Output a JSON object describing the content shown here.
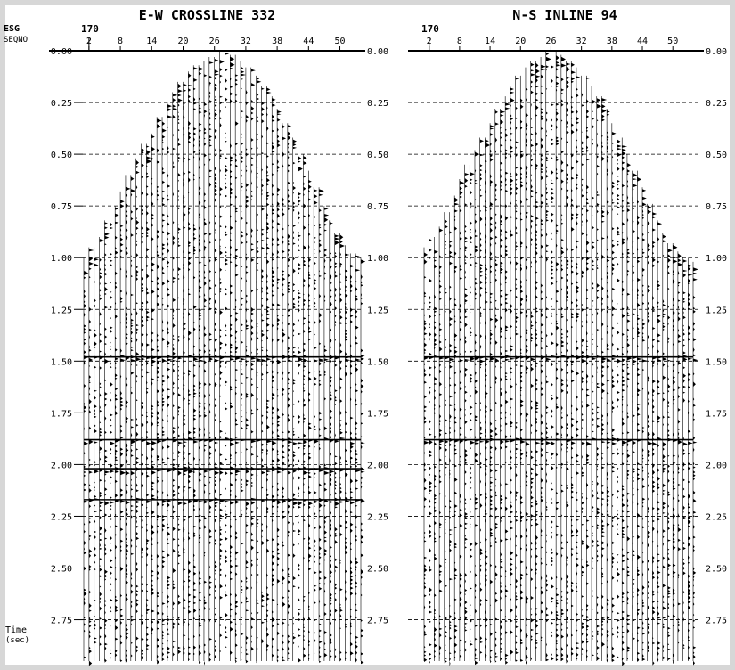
{
  "header": {
    "trace_key_1": "ESG",
    "trace_key_2": "SEQNO"
  },
  "time_axis": {
    "label": "Time",
    "unit": "(sec)"
  },
  "chart_data": [
    {
      "type": "seismic_wiggle",
      "title": "E-W CROSSLINE 332",
      "first_trace_header": "170",
      "x_ticks": [
        2,
        8,
        14,
        20,
        26,
        32,
        38,
        44,
        50
      ],
      "y_ticks": [
        "0.00",
        "0.25",
        "0.50",
        "0.75",
        "1.00",
        "1.25",
        "1.50",
        "1.75",
        "2.00",
        "2.25",
        "2.50",
        "2.75"
      ],
      "ylim": [
        0.0,
        2.95
      ],
      "trace_range": [
        1,
        54
      ],
      "gridlines": "dashed at 0.25 s",
      "mute_first_arrival_sec": [
        1.0,
        0.95,
        0.9,
        0.82,
        0.75,
        0.68,
        0.6,
        0.52,
        0.45,
        0.4,
        0.32,
        0.25,
        0.2,
        0.15,
        0.1,
        0.07,
        0.05,
        0.03,
        0.0,
        0.0,
        0.02,
        0.05,
        0.08,
        0.12,
        0.17,
        0.22,
        0.28,
        0.35,
        0.42,
        0.5,
        0.58,
        0.66,
        0.75,
        0.82,
        0.88,
        0.94,
        0.98,
        1.0
      ],
      "strong_reflectors_sec": [
        1.48,
        1.88,
        2.02,
        2.17
      ]
    },
    {
      "type": "seismic_wiggle",
      "title": "N-S INLINE 94",
      "first_trace_header": "170",
      "x_ticks": [
        2,
        8,
        14,
        20,
        26,
        32,
        38,
        44,
        50
      ],
      "y_ticks": [
        "0.00",
        "0.25",
        "0.50",
        "0.75",
        "1.00",
        "1.25",
        "1.50",
        "1.75",
        "2.00",
        "2.25",
        "2.50",
        "2.75"
      ],
      "ylim": [
        0.0,
        2.95
      ],
      "trace_range": [
        1,
        54
      ],
      "gridlines": "dashed at 0.25 s",
      "mute_first_arrival_sec": [
        0.95,
        0.9,
        0.85,
        0.78,
        0.7,
        0.62,
        0.55,
        0.48,
        0.42,
        0.35,
        0.28,
        0.22,
        0.17,
        0.12,
        0.08,
        0.05,
        0.03,
        0.0,
        0.0,
        0.02,
        0.05,
        0.08,
        0.12,
        0.17,
        0.22,
        0.28,
        0.35,
        0.42,
        0.5,
        0.58,
        0.66,
        0.74,
        0.82,
        0.88,
        0.93,
        0.97,
        1.0,
        1.02
      ],
      "strong_reflectors_sec": [
        1.48,
        1.88
      ]
    }
  ]
}
